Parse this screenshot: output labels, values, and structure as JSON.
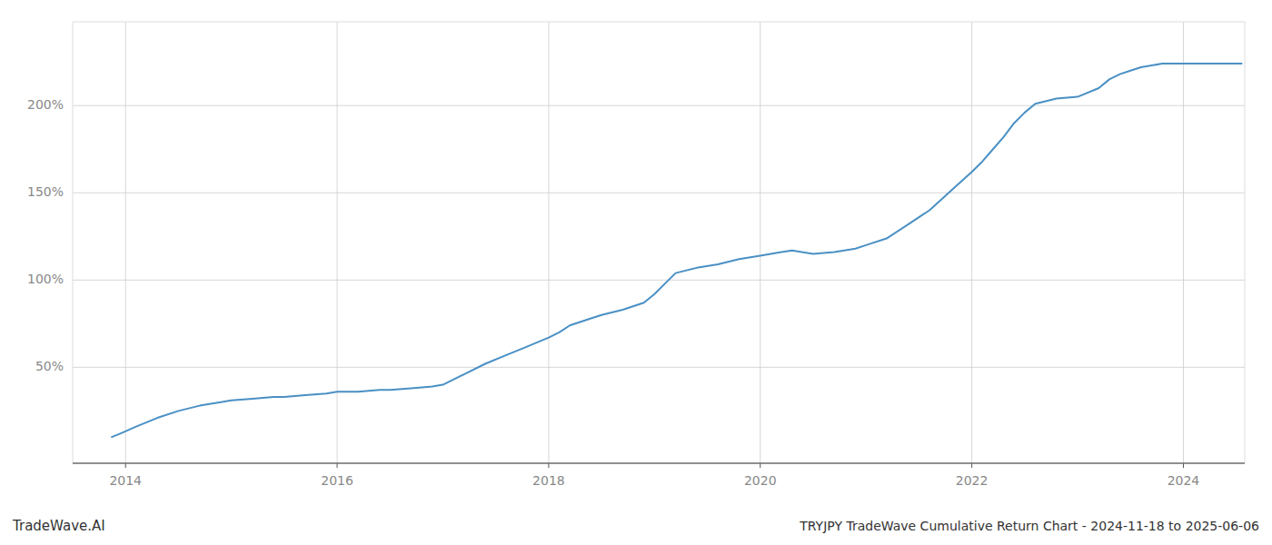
{
  "chart_data": {
    "type": "line",
    "title": "TRYJPY TradeWave Cumulative Return Chart - 2024-11-18 to 2025-06-06",
    "annotations": [
      "TradeWave.AI"
    ],
    "color": "#4a90c4",
    "grid": true,
    "xlim": [
      2013.5,
      2024.58
    ],
    "ylim": [
      -5,
      248
    ],
    "xticks": [
      2014,
      2016,
      2018,
      2020,
      2022,
      2024
    ],
    "yticks": [
      {
        "value": 50,
        "label": "50%"
      },
      {
        "value": 100,
        "label": "100%"
      },
      {
        "value": 150,
        "label": "150%"
      },
      {
        "value": 200,
        "label": "200%"
      }
    ],
    "x": [
      2013.87,
      2013.95,
      2014.1,
      2014.3,
      2014.5,
      2014.7,
      2014.9,
      2015.0,
      2015.2,
      2015.4,
      2015.5,
      2015.7,
      2015.9,
      2016.0,
      2016.2,
      2016.4,
      2016.5,
      2016.7,
      2016.9,
      2017.0,
      2017.2,
      2017.4,
      2017.6,
      2017.8,
      2018.0,
      2018.1,
      2018.2,
      2018.4,
      2018.5,
      2018.7,
      2018.9,
      2019.0,
      2019.1,
      2019.2,
      2019.4,
      2019.6,
      2019.8,
      2020.0,
      2020.1,
      2020.2,
      2020.3,
      2020.5,
      2020.7,
      2020.9,
      2021.0,
      2021.2,
      2021.4,
      2021.6,
      2021.8,
      2022.0,
      2022.1,
      2022.2,
      2022.3,
      2022.4,
      2022.5,
      2022.6,
      2022.8,
      2023.0,
      2023.2,
      2023.3,
      2023.4,
      2023.5,
      2023.6,
      2023.8,
      2024.0,
      2024.2,
      2024.4,
      2024.55
    ],
    "values": [
      10,
      12,
      16,
      21,
      25,
      28,
      30,
      31,
      32,
      33,
      33,
      34,
      35,
      36,
      36,
      37,
      37,
      38,
      39,
      40,
      46,
      52,
      57,
      62,
      67,
      70,
      74,
      78,
      80,
      83,
      87,
      92,
      98,
      104,
      107,
      109,
      112,
      114,
      115,
      116,
      117,
      115,
      116,
      118,
      120,
      124,
      132,
      140,
      151,
      162,
      168,
      175,
      182,
      190,
      196,
      201,
      204,
      205,
      210,
      215,
      218,
      220,
      222,
      224,
      224,
      224,
      224,
      224
    ]
  }
}
